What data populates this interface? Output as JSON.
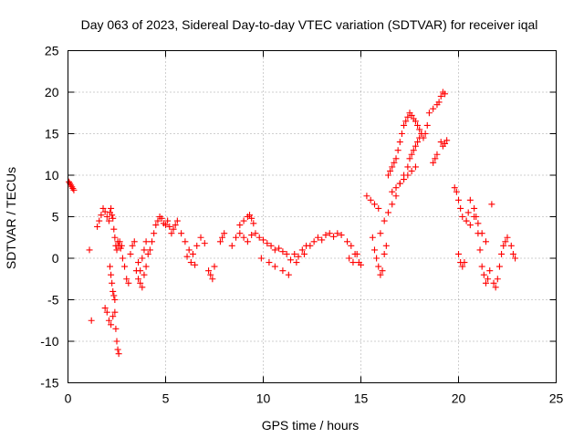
{
  "chart_data": {
    "type": "scatter",
    "title": "Day 063 of 2023, Sidereal Day-to-day VTEC variation (SDTVAR) for receiver iqal",
    "xlabel": "GPS time / hours",
    "ylabel": "SDTVAR / TECUs",
    "xlim": [
      0,
      25
    ],
    "ylim": [
      -15,
      25
    ],
    "xticks": [
      0,
      5,
      10,
      15,
      20,
      25
    ],
    "yticks": [
      -15,
      -10,
      -5,
      0,
      5,
      10,
      15,
      20,
      25
    ],
    "xtick_labels": [
      "0",
      "5",
      "10",
      "15",
      "20",
      "25"
    ],
    "ytick_labels": [
      "-15",
      "-10",
      "-5",
      "0",
      "5",
      "10",
      "15",
      "20",
      "25"
    ],
    "grid": true,
    "marker": "plus",
    "color": "#ff0000",
    "series": [
      {
        "name": "SDTVAR",
        "x": [
          0.05,
          0.1,
          0.15,
          0.2,
          0.25,
          0.3,
          1.1,
          1.5,
          1.6,
          1.7,
          1.8,
          1.9,
          2.0,
          2.1,
          2.15,
          2.2,
          2.25,
          2.3,
          2.35,
          2.4,
          2.45,
          2.5,
          2.55,
          2.6,
          2.65,
          2.7,
          2.75,
          1.9,
          2.0,
          2.1,
          2.2,
          2.3,
          2.4,
          2.45,
          2.5,
          2.55,
          2.6,
          2.15,
          2.2,
          2.25,
          2.3,
          2.35,
          2.4,
          2.8,
          2.9,
          3.0,
          3.1,
          3.2,
          3.3,
          3.4,
          3.5,
          3.6,
          3.7,
          3.8,
          3.9,
          4.0,
          4.1,
          4.2,
          3.6,
          3.7,
          3.8,
          3.9,
          4.0,
          4.3,
          4.4,
          4.5,
          4.6,
          4.7,
          4.8,
          4.9,
          5.0,
          5.1,
          5.2,
          5.3,
          5.4,
          5.5,
          5.6,
          5.8,
          6.0,
          6.2,
          6.4,
          6.6,
          6.8,
          7.0,
          6.1,
          6.3,
          6.5,
          7.2,
          7.3,
          7.4,
          7.5,
          7.8,
          7.9,
          8.0,
          8.4,
          8.6,
          8.8,
          9.0,
          9.2,
          9.4,
          9.6,
          9.8,
          10.0,
          10.2,
          10.4,
          10.6,
          10.8,
          11.0,
          11.2,
          11.4,
          11.6,
          11.8,
          12.0,
          12.2,
          8.8,
          9.0,
          9.2,
          9.3,
          9.4,
          9.5,
          9.9,
          10.3,
          10.6,
          11.0,
          11.3,
          11.7,
          12.1,
          12.4,
          12.6,
          12.8,
          13.0,
          13.2,
          13.4,
          13.6,
          13.8,
          14.0,
          14.3,
          14.5,
          14.7,
          14.9,
          15.0,
          14.4,
          14.6,
          14.8,
          15.3,
          15.5,
          15.7,
          15.9,
          15.6,
          15.7,
          15.8,
          15.9,
          16.0,
          16.1,
          16.2,
          16.3,
          16.0,
          16.2,
          16.4,
          16.6,
          16.8,
          17.0,
          17.2,
          17.4,
          16.4,
          16.5,
          16.6,
          16.7,
          16.8,
          16.9,
          17.0,
          17.1,
          17.2,
          17.3,
          17.4,
          17.5,
          17.6,
          17.7,
          17.8,
          17.9,
          18.0,
          18.1,
          18.2,
          18.3,
          18.4,
          17.5,
          17.6,
          17.7,
          17.8,
          17.9,
          18.0,
          18.1,
          16.6,
          16.8,
          17.0,
          17.2,
          17.4,
          17.6,
          17.8,
          18.5,
          18.7,
          18.9,
          19.0,
          19.1,
          19.2,
          19.3,
          19.1,
          19.2,
          19.3,
          19.4,
          18.7,
          18.8,
          18.9,
          19.8,
          19.9,
          20.0,
          20.1,
          20.0,
          20.1,
          20.2,
          20.3,
          20.4,
          20.5,
          20.6,
          20.2,
          20.4,
          20.6,
          20.8,
          21.0,
          21.2,
          21.4,
          20.8,
          20.9,
          21.0,
          21.1,
          21.2,
          21.3,
          21.4,
          21.5,
          21.6,
          21.7,
          21.8,
          21.9,
          22.0,
          22.1,
          22.2,
          22.3,
          22.4,
          22.5,
          22.7,
          22.8,
          22.9,
          1.2
        ],
        "y": [
          9.2,
          9.0,
          8.8,
          8.6,
          8.4,
          8.2,
          1.0,
          3.8,
          4.5,
          5.2,
          6.0,
          5.6,
          5.0,
          4.5,
          5.5,
          6.0,
          5.2,
          4.8,
          3.5,
          2.5,
          1.5,
          1.0,
          2.0,
          1.5,
          2.0,
          1.2,
          1.5,
          -6.0,
          -6.5,
          -7.5,
          -8.0,
          -7.0,
          -6.5,
          -8.5,
          -10.0,
          -11.0,
          -11.5,
          -1.0,
          -2.0,
          -3.0,
          -4.0,
          -4.5,
          -5.0,
          0.0,
          -1.0,
          -2.5,
          -3.0,
          0.5,
          1.5,
          2.0,
          -1.5,
          -2.5,
          -3.0,
          -3.5,
          -2.0,
          -1.0,
          0.5,
          1.0,
          -0.5,
          -1.5,
          0.0,
          1.0,
          2.0,
          2.0,
          3.0,
          4.0,
          4.5,
          5.0,
          4.8,
          4.2,
          4.0,
          4.5,
          3.8,
          3.0,
          3.5,
          4.0,
          4.5,
          3.0,
          2.0,
          1.0,
          0.5,
          1.5,
          2.5,
          1.8,
          0.2,
          -0.5,
          -0.8,
          -1.5,
          -2.0,
          -2.5,
          -1.0,
          2.0,
          2.5,
          3.0,
          1.5,
          2.5,
          3.0,
          2.5,
          2.0,
          2.8,
          3.0,
          2.5,
          2.2,
          1.8,
          1.5,
          1.0,
          1.2,
          0.8,
          0.5,
          -0.2,
          0.5,
          0.2,
          1.0,
          1.5,
          4.0,
          4.5,
          5.0,
          5.2,
          4.8,
          4.2,
          0.0,
          -0.5,
          -1.0,
          -1.5,
          -2.0,
          -0.5,
          0.5,
          1.5,
          2.0,
          2.5,
          2.2,
          2.8,
          3.0,
          2.6,
          3.0,
          2.8,
          2.0,
          1.5,
          0.5,
          -0.5,
          -0.8,
          0.0,
          -0.5,
          0.5,
          7.5,
          7.0,
          6.5,
          6.0,
          2.5,
          1.0,
          0.0,
          -1.0,
          -2.0,
          -1.5,
          0.5,
          1.5,
          3.0,
          4.5,
          5.5,
          6.5,
          7.5,
          9.0,
          10.0,
          11.0,
          10.0,
          10.5,
          11.0,
          11.5,
          12.0,
          13.0,
          14.0,
          15.0,
          16.0,
          16.5,
          17.0,
          17.5,
          17.2,
          16.8,
          16.5,
          16.0,
          15.5,
          15.0,
          14.5,
          15.0,
          16.0,
          12.0,
          12.5,
          13.0,
          13.5,
          14.0,
          14.5,
          15.0,
          8.0,
          8.5,
          9.0,
          9.5,
          10.0,
          10.5,
          11.0,
          17.5,
          18.0,
          18.5,
          18.8,
          19.5,
          20.0,
          19.8,
          14.0,
          13.5,
          13.8,
          14.2,
          11.5,
          12.0,
          12.5,
          8.5,
          8.0,
          7.0,
          6.0,
          0.5,
          -0.5,
          -1.0,
          -0.5,
          4.5,
          5.5,
          7.0,
          5.0,
          4.5,
          4.0,
          5.0,
          4.2,
          3.0,
          2.0,
          6.0,
          5.0,
          3.0,
          1.0,
          -1.0,
          -2.0,
          -3.0,
          -2.5,
          -1.5,
          6.5,
          -3.0,
          -3.5,
          -2.5,
          -1.0,
          0.5,
          1.5,
          2.0,
          2.5,
          1.5,
          0.5,
          0.0,
          -7.5
        ]
      }
    ]
  }
}
